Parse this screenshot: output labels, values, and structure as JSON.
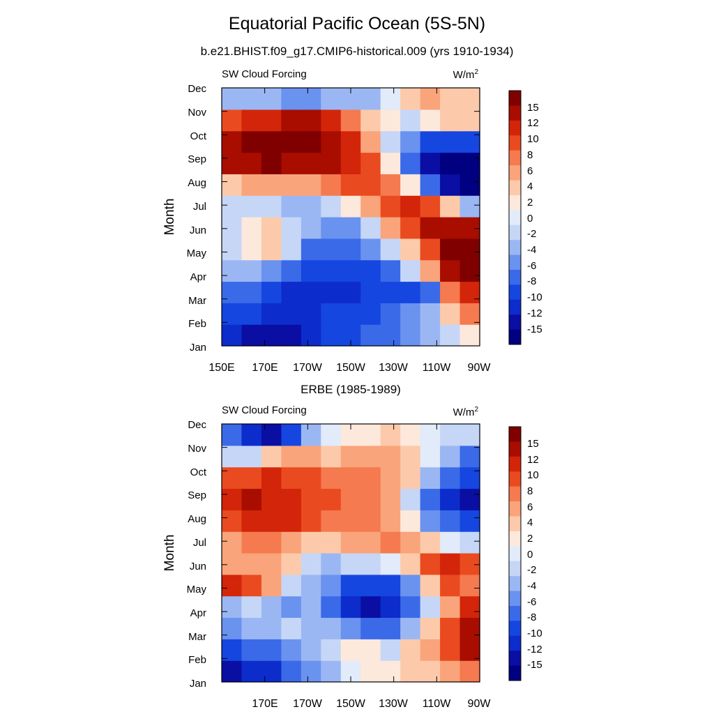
{
  "title": "Equatorial Pacific Ocean (5S-5N)",
  "subtitle": "b.e21.BHIST.f09_g17.CMIP6-historical.009 (yrs 1910-1934)",
  "colors": {
    "levels": [
      "#000080",
      "#0a0ea3",
      "#0d2ccc",
      "#1546e0",
      "#3a6ae8",
      "#6a92ef",
      "#9bb7f3",
      "#c6d6f7",
      "#e1ebf9",
      "#fde8dc",
      "#fccaaa",
      "#f9a47a",
      "#f57a4f",
      "#ea4a1f",
      "#d3250a",
      "#a80d00",
      "#800000"
    ]
  },
  "chart_data": [
    {
      "type": "heatmap",
      "title": "",
      "left_label": "SW Cloud Forcing",
      "units": "W/m",
      "units_superscript": "2",
      "xlabel": "",
      "ylabel": "Month",
      "x_ticklabels": [
        "150E",
        "170E",
        "170W",
        "150W",
        "130W",
        "110W",
        "90W"
      ],
      "y_ticklabels": [
        "Jan",
        "Feb",
        "Mar",
        "Apr",
        "May",
        "Jun",
        "Jul",
        "Aug",
        "Sep",
        "Oct",
        "Nov",
        "Dec"
      ],
      "colorbar_labels": [
        "15",
        "12",
        "10",
        "8",
        "6",
        "4",
        "2",
        "0",
        "-2",
        "-4",
        "-6",
        "-8",
        "-10",
        "-12",
        "-15"
      ],
      "x": [
        "150E",
        "160E",
        "170E",
        "180",
        "170W",
        "160W",
        "150W",
        "140W",
        "130W",
        "120W",
        "110W",
        "100W",
        "90W"
      ],
      "y": [
        "Jan",
        "Feb",
        "Mar",
        "Apr",
        "May",
        "Jun",
        "Jul",
        "Aug",
        "Sep",
        "Oct",
        "Nov",
        "Dec"
      ],
      "z": [
        [
          -12,
          -13,
          -15,
          -13,
          -12,
          -10,
          -9,
          -8,
          -7,
          -6,
          -4,
          -1,
          1
        ],
        [
          -9,
          -10,
          -11,
          -12,
          -11,
          -10,
          -9,
          -9,
          -8,
          -6,
          -4,
          2,
          6
        ],
        [
          -7,
          -8,
          -9,
          -11,
          -12,
          -12,
          -11,
          -10,
          -9,
          -10,
          -8,
          6,
          10
        ],
        [
          -3,
          -4,
          -6,
          -7,
          -9,
          -10,
          -10,
          -9,
          -7,
          -2,
          5,
          12,
          16
        ],
        [
          -1,
          1,
          3,
          -1,
          -7,
          -8,
          -8,
          -6,
          -2,
          3,
          9,
          15,
          16
        ],
        [
          -1,
          1,
          2,
          -1,
          -4,
          -6,
          -5,
          -2,
          4,
          9,
          12,
          14,
          12
        ],
        [
          -2,
          -1,
          -1,
          -3,
          -4,
          -2,
          1,
          5,
          8,
          10,
          8,
          2,
          -3
        ],
        [
          3,
          4,
          5,
          4,
          5,
          6,
          8,
          9,
          7,
          1,
          -8,
          -14,
          -16
        ],
        [
          12,
          14,
          15,
          14,
          14,
          12,
          10,
          8,
          1,
          -8,
          -14,
          -16,
          -16
        ],
        [
          14,
          16,
          15,
          16,
          16,
          14,
          10,
          5,
          -2,
          -6,
          -9,
          -10,
          -9
        ],
        [
          9,
          11,
          11,
          12,
          12,
          10,
          7,
          3,
          1,
          -1,
          1,
          2,
          3
        ],
        [
          -3,
          -4,
          -4,
          -5,
          -5,
          -4,
          -4,
          -3,
          0,
          2,
          4,
          3,
          2
        ]
      ]
    },
    {
      "type": "heatmap",
      "title": "ERBE (1985-1989)",
      "left_label": "SW Cloud Forcing",
      "units": "W/m",
      "units_superscript": "2",
      "xlabel": "",
      "ylabel": "Month",
      "x_ticklabels": [
        "170E",
        "170W",
        "150W",
        "130W",
        "110W",
        "90W"
      ],
      "y_ticklabels": [
        "Jan",
        "Feb",
        "Mar",
        "Apr",
        "May",
        "Jun",
        "Jul",
        "Aug",
        "Sep",
        "Oct",
        "Nov",
        "Dec"
      ],
      "colorbar_labels": [
        "15",
        "12",
        "10",
        "8",
        "6",
        "4",
        "2",
        "0",
        "-2",
        "-4",
        "-6",
        "-8",
        "-10",
        "-12",
        "-15"
      ],
      "x": [
        "150E",
        "160E",
        "170E",
        "180",
        "170W",
        "160W",
        "150W",
        "140W",
        "130W",
        "120W",
        "110W",
        "100W",
        "90W"
      ],
      "y": [
        "Jan",
        "Feb",
        "Mar",
        "Apr",
        "May",
        "Jun",
        "Jul",
        "Aug",
        "Sep",
        "Oct",
        "Nov",
        "Dec"
      ],
      "z": [
        [
          -14,
          -12,
          -12,
          -8,
          -6,
          -3,
          0,
          1,
          1,
          2,
          3,
          4,
          6
        ],
        [
          -10,
          -8,
          -7,
          -5,
          -3,
          -1,
          1,
          1,
          -1,
          2,
          4,
          8,
          12
        ],
        [
          -6,
          -4,
          -3,
          -2,
          -3,
          -4,
          -6,
          -7,
          -7,
          -4,
          2,
          9,
          14
        ],
        [
          -3,
          -2,
          -4,
          -5,
          -4,
          -8,
          -11,
          -13,
          -12,
          -8,
          -1,
          5,
          10
        ],
        [
          10,
          8,
          4,
          -2,
          -4,
          -6,
          -9,
          -10,
          -9,
          -5,
          3,
          8,
          6
        ],
        [
          4,
          5,
          4,
          3,
          -2,
          -3,
          -2,
          -1,
          0,
          3,
          8,
          10,
          8
        ],
        [
          4,
          6,
          6,
          5,
          3,
          2,
          5,
          5,
          6,
          4,
          2,
          0,
          -2
        ],
        [
          9,
          10,
          11,
          10,
          8,
          7,
          6,
          6,
          4,
          1,
          -5,
          -8,
          -9
        ],
        [
          10,
          12,
          11,
          10,
          9,
          8,
          7,
          6,
          4,
          -1,
          -7,
          -12,
          -14
        ],
        [
          8,
          9,
          10,
          9,
          8,
          6,
          6,
          6,
          4,
          2,
          -3,
          -8,
          -10
        ],
        [
          -2,
          -1,
          2,
          4,
          4,
          3,
          4,
          4,
          4,
          2,
          0,
          -4,
          -7
        ],
        [
          -8,
          -12,
          -14,
          -10,
          -4,
          0,
          1,
          1,
          2,
          1,
          0,
          -2,
          -1
        ]
      ]
    }
  ]
}
